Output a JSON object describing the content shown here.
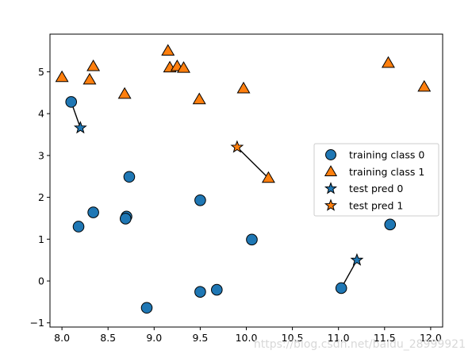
{
  "chart_data": {
    "type": "scatter",
    "xlim": [
      7.87,
      12.13
    ],
    "ylim": [
      -1.1,
      5.9
    ],
    "xticks": [
      8.0,
      8.5,
      9.0,
      9.5,
      10.0,
      10.5,
      11.0,
      11.5,
      12.0
    ],
    "xtick_labels": [
      "8.0",
      "8.5",
      "9.0",
      "9.5",
      "10.0",
      "10.5",
      "11.0",
      "11.5",
      "12.0"
    ],
    "yticks": [
      -1,
      0,
      1,
      2,
      3,
      4,
      5
    ],
    "ytick_labels": [
      "−1",
      "0",
      "1",
      "2",
      "3",
      "4",
      "5"
    ],
    "grid": false,
    "legend_position": "right",
    "series": [
      {
        "name": "training class 0",
        "marker": "circle",
        "color": "#1f77b4",
        "points": [
          [
            8.1,
            4.28
          ],
          [
            8.73,
            2.49
          ],
          [
            8.34,
            1.64
          ],
          [
            8.7,
            1.54
          ],
          [
            8.69,
            1.49
          ],
          [
            8.18,
            1.3
          ],
          [
            9.5,
            1.93
          ],
          [
            10.06,
            0.99
          ],
          [
            11.56,
            1.35
          ],
          [
            11.03,
            -0.17
          ],
          [
            9.68,
            -0.21
          ],
          [
            9.5,
            -0.26
          ],
          [
            8.92,
            -0.64
          ]
        ]
      },
      {
        "name": "training class 1",
        "marker": "triangle",
        "color": "#ff7f0e",
        "points": [
          [
            8.0,
            4.87
          ],
          [
            8.3,
            4.81
          ],
          [
            8.34,
            5.13
          ],
          [
            8.68,
            4.47
          ],
          [
            9.15,
            5.5
          ],
          [
            9.17,
            5.1
          ],
          [
            9.25,
            5.13
          ],
          [
            9.32,
            5.09
          ],
          [
            9.49,
            4.34
          ],
          [
            9.97,
            4.6
          ],
          [
            10.24,
            2.46
          ],
          [
            11.54,
            5.21
          ],
          [
            11.93,
            4.64
          ]
        ]
      },
      {
        "name": "test pred 0",
        "marker": "star",
        "color": "#1f77b4",
        "points": [
          [
            8.2,
            3.66
          ],
          [
            11.2,
            0.5
          ]
        ]
      },
      {
        "name": "test pred 1",
        "marker": "star",
        "color": "#ff7f0e",
        "points": [
          [
            9.9,
            3.2
          ]
        ]
      }
    ],
    "neighbor_lines": [
      {
        "from": [
          8.2,
          3.66
        ],
        "to": [
          8.1,
          4.28
        ]
      },
      {
        "from": [
          9.9,
          3.2
        ],
        "to": [
          10.24,
          2.46
        ]
      },
      {
        "from": [
          11.2,
          0.5
        ],
        "to": [
          11.03,
          -0.17
        ]
      }
    ]
  },
  "watermark": {
    "text": "https://blog.csdn.net/baidu_28999921"
  }
}
